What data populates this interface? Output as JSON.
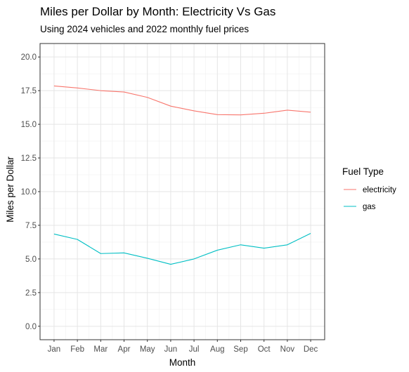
{
  "chart_data": {
    "type": "line",
    "title": "Miles per Dollar by Month: Electricity Vs Gas",
    "subtitle": "Using 2024 vehicles and 2022 monthly fuel prices",
    "xlabel": "Month",
    "ylabel": "Miles per Dollar",
    "categories": [
      "Jan",
      "Feb",
      "Mar",
      "Apr",
      "May",
      "Jun",
      "Jul",
      "Aug",
      "Sep",
      "Oct",
      "Nov",
      "Dec"
    ],
    "ylim": [
      -1,
      21
    ],
    "yticks": [
      0,
      2.5,
      5,
      7.5,
      10,
      12.5,
      15,
      17.5,
      20
    ],
    "ytick_labels": [
      "0.0",
      "2.5",
      "5.0",
      "7.5",
      "10.0",
      "12.5",
      "15.0",
      "17.5",
      "20.0"
    ],
    "grid": true,
    "legend": {
      "title": "Fuel Type",
      "position": "right"
    },
    "series": [
      {
        "name": "electricity",
        "color": "#F8766D",
        "values": [
          17.85,
          17.7,
          17.5,
          17.4,
          17.0,
          16.35,
          16.0,
          15.72,
          15.7,
          15.82,
          16.05,
          15.9
        ]
      },
      {
        "name": "gas",
        "color": "#00BFC4",
        "values": [
          6.85,
          6.45,
          5.4,
          5.45,
          5.05,
          4.6,
          5.0,
          5.65,
          6.05,
          5.8,
          6.05,
          6.9
        ]
      }
    ]
  }
}
